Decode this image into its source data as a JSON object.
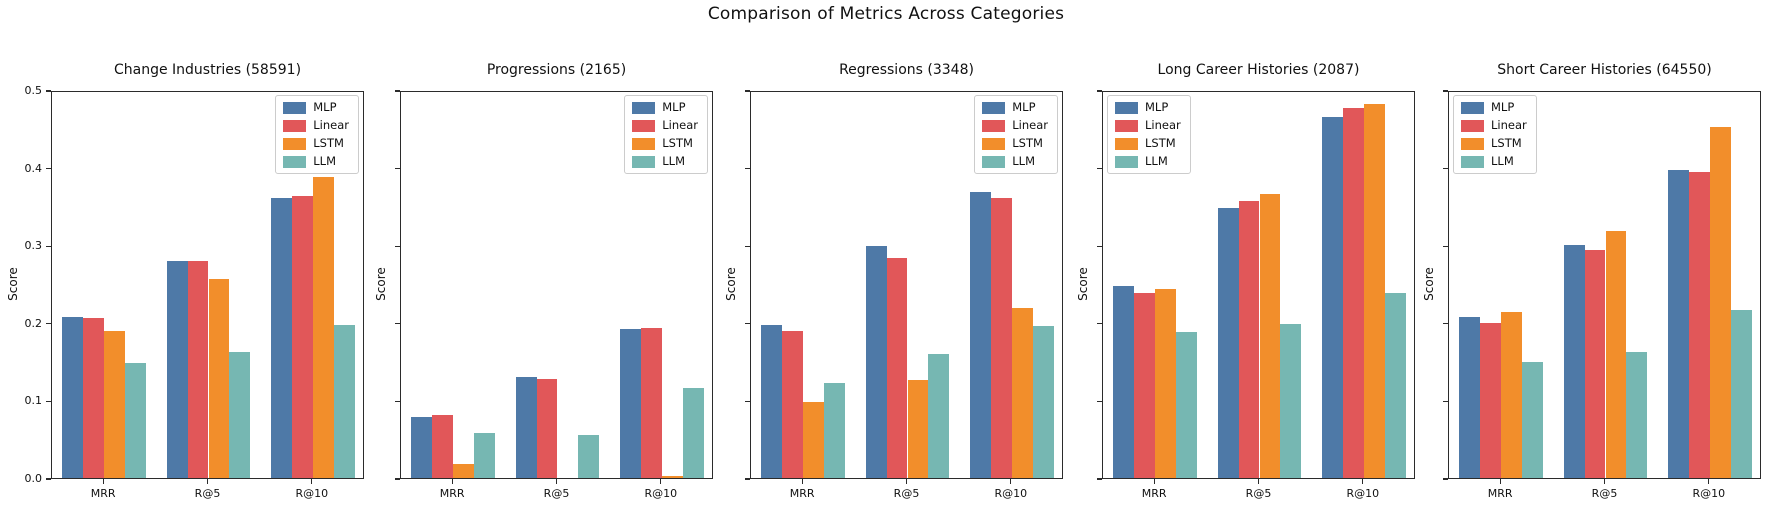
{
  "chart_data": {
    "type": "bar",
    "title": "Comparison of Metrics Across Categories",
    "categories": [
      "MRR",
      "R@5",
      "R@10"
    ],
    "ylabel": "Score",
    "ylim": [
      0,
      0.5
    ],
    "yticks": [
      0.0,
      0.1,
      0.2,
      0.3,
      0.4,
      0.5
    ],
    "ytick_labels": [
      "0.0",
      "0.1",
      "0.2",
      "0.3",
      "0.4",
      "0.5"
    ],
    "grid": false,
    "legend_entries": [
      "MLP",
      "Linear",
      "LSTM",
      "LLM"
    ],
    "palette": {
      "MLP": "#4E79A7",
      "Linear": "#E15759",
      "LSTM": "#F28E2B",
      "LLM": "#76B7B2"
    },
    "subplots": [
      {
        "title": "Change Industries (58591)",
        "legend_position": "upper-right",
        "show_ytick_labels": true,
        "series": [
          {
            "name": "MLP",
            "values": [
              0.207,
              0.28,
              0.361
            ]
          },
          {
            "name": "Linear",
            "values": [
              0.206,
              0.28,
              0.363
            ]
          },
          {
            "name": "LSTM",
            "values": [
              0.189,
              0.257,
              0.388
            ]
          },
          {
            "name": "LLM",
            "values": [
              0.148,
              0.163,
              0.197
            ]
          }
        ]
      },
      {
        "title": "Progressions (2165)",
        "legend_position": "upper-right",
        "show_ytick_labels": false,
        "series": [
          {
            "name": "MLP",
            "values": [
              0.078,
              0.13,
              0.192
            ]
          },
          {
            "name": "Linear",
            "values": [
              0.081,
              0.128,
              0.193
            ]
          },
          {
            "name": "LSTM",
            "values": [
              0.018,
              0.0,
              0.002
            ]
          },
          {
            "name": "LLM",
            "values": [
              0.058,
              0.056,
              0.116
            ]
          }
        ]
      },
      {
        "title": "Regressions (3348)",
        "legend_position": "upper-right",
        "show_ytick_labels": false,
        "series": [
          {
            "name": "MLP",
            "values": [
              0.197,
              0.299,
              0.368
            ]
          },
          {
            "name": "Linear",
            "values": [
              0.189,
              0.283,
              0.361
            ]
          },
          {
            "name": "LSTM",
            "values": [
              0.098,
              0.126,
              0.219
            ]
          },
          {
            "name": "LLM",
            "values": [
              0.122,
              0.16,
              0.196
            ]
          }
        ]
      },
      {
        "title": "Long Career Histories (2087)",
        "legend_position": "upper-left",
        "show_ytick_labels": false,
        "series": [
          {
            "name": "MLP",
            "values": [
              0.247,
              0.348,
              0.465
            ]
          },
          {
            "name": "Linear",
            "values": [
              0.238,
              0.357,
              0.477
            ]
          },
          {
            "name": "LSTM",
            "values": [
              0.243,
              0.366,
              0.482
            ]
          },
          {
            "name": "LLM",
            "values": [
              0.188,
              0.198,
              0.239
            ]
          }
        ]
      },
      {
        "title": "Short Career Histories (64550)",
        "legend_position": "upper-left",
        "show_ytick_labels": false,
        "series": [
          {
            "name": "MLP",
            "values": [
              0.207,
              0.3,
              0.397
            ]
          },
          {
            "name": "Linear",
            "values": [
              0.2,
              0.294,
              0.394
            ]
          },
          {
            "name": "LSTM",
            "values": [
              0.214,
              0.318,
              0.452
            ]
          },
          {
            "name": "LLM",
            "values": [
              0.15,
              0.163,
              0.216
            ]
          }
        ]
      }
    ]
  }
}
